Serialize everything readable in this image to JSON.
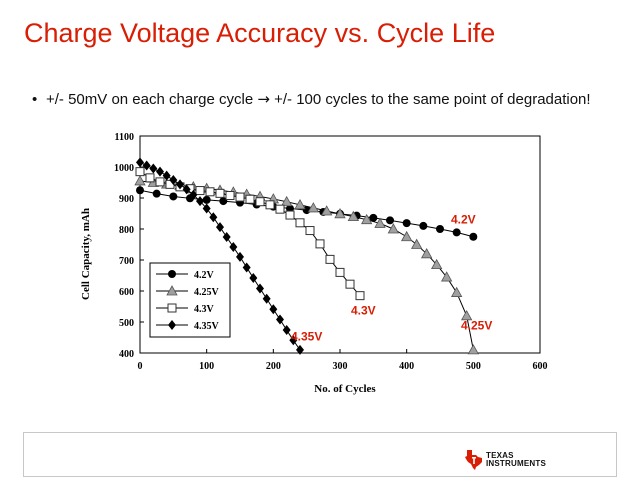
{
  "slide": {
    "title": "Charge Voltage Accuracy vs. Cycle Life",
    "bullet": "+/- 50mV on each charge cycle",
    "bullet_arrow": "→",
    "bullet_rest": "+/- 100 cycles to the same point of degradation!"
  },
  "logo": {
    "line1": "Texas",
    "line2": "Instruments",
    "icon": "texas-state-icon"
  },
  "colors": {
    "title": "#d81e05",
    "annotation": "#d81e05",
    "marker": "#000000",
    "gray_marker": "#a0a0a0"
  },
  "chart_data": {
    "type": "line",
    "xlabel": "No. of Cycles",
    "ylabel": "Cell Capacity, mAh",
    "xlim": [
      0,
      600
    ],
    "ylim": [
      400,
      1100
    ],
    "xticks": [
      "0",
      "100",
      "200",
      "300",
      "400",
      "500",
      "600"
    ],
    "yticks": [
      "400",
      "500",
      "600",
      "700",
      "800",
      "900",
      "1000",
      "1100"
    ],
    "legend_position": "lower-left",
    "series": [
      {
        "name": "4.2V",
        "marker": "circle",
        "x": [
          0,
          25,
          50,
          75,
          100,
          125,
          150,
          175,
          200,
          225,
          250,
          275,
          300,
          325,
          350,
          375,
          400,
          425,
          450,
          475,
          500
        ],
        "y": [
          925,
          914,
          905,
          899,
          894,
          890,
          885,
          879,
          872,
          866,
          861,
          855,
          849,
          843,
          836,
          828,
          819,
          810,
          800,
          789,
          775
        ]
      },
      {
        "name": "4.25V",
        "marker": "triangle",
        "x": [
          0,
          20,
          40,
          60,
          80,
          100,
          120,
          140,
          160,
          180,
          200,
          220,
          240,
          260,
          280,
          300,
          320,
          340,
          360,
          380,
          400,
          415,
          430,
          445,
          460,
          475,
          490,
          500
        ],
        "y": [
          955,
          950,
          945,
          941,
          936,
          931,
          925,
          919,
          912,
          905,
          897,
          888,
          878,
          868,
          858,
          849,
          840,
          830,
          818,
          800,
          775,
          750,
          720,
          685,
          645,
          595,
          520,
          410
        ]
      },
      {
        "name": "4.3V",
        "marker": "square",
        "x": [
          0,
          15,
          30,
          45,
          60,
          75,
          90,
          105,
          120,
          135,
          150,
          165,
          180,
          195,
          210,
          225,
          240,
          255,
          270,
          285,
          300,
          315,
          330
        ],
        "y": [
          985,
          965,
          952,
          944,
          936,
          930,
          924,
          920,
          915,
          908,
          903,
          896,
          888,
          878,
          864,
          845,
          820,
          795,
          752,
          702,
          660,
          622,
          585
        ]
      },
      {
        "name": "4.35V",
        "marker": "diamond",
        "x": [
          0,
          10,
          20,
          30,
          40,
          50,
          60,
          70,
          80,
          90,
          100,
          110,
          120,
          130,
          140,
          150,
          160,
          170,
          180,
          190,
          200,
          210,
          220,
          230,
          240
        ],
        "y": [
          1015,
          1005,
          995,
          985,
          972,
          958,
          944,
          928,
          910,
          890,
          866,
          838,
          806,
          774,
          742,
          710,
          676,
          642,
          608,
          575,
          541,
          508,
          474,
          441,
          410
        ]
      }
    ],
    "annotations": [
      {
        "text": "4.2V",
        "x": 485,
        "y": 818
      },
      {
        "text": "4.3V",
        "x": 335,
        "y": 525
      },
      {
        "text": "4.25V",
        "x": 505,
        "y": 476
      },
      {
        "text": "4.35V",
        "x": 250,
        "y": 441
      }
    ]
  }
}
